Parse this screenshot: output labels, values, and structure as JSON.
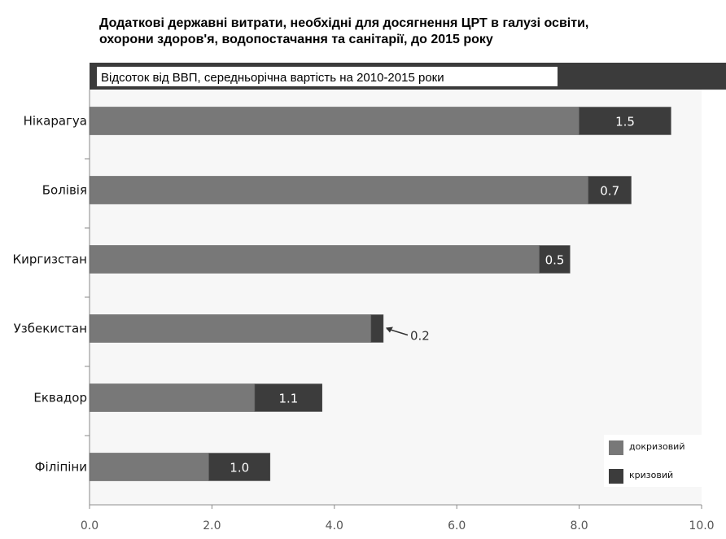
{
  "chart_data": {
    "type": "bar",
    "orientation": "horizontal",
    "stacked": true,
    "title": "Додаткові державні витрати, необхідні для досягнення ЦРТ в галузі освіти, охорони здоров'я, водопостачання та санітарії, до 2015 року",
    "title_lines": [
      "Додаткові державні витрати, необхідні для досягнення ЦРТ в галузі освіти,",
      "охорони здоров'я, водопостачання та санітарії, до 2015 року"
    ],
    "subtitle": "Відсоток від ВВП, середньорічна вартість на 2010-2015 роки",
    "categories": [
      "Нікарагуа",
      "Болівія",
      "Киргизстан",
      "Узбекистан",
      "Еквадор",
      "Філіпіни"
    ],
    "series": [
      {
        "name": "докризовий",
        "color": "#787878",
        "values": [
          8.0,
          8.15,
          7.35,
          4.6,
          2.7,
          1.95
        ]
      },
      {
        "name": "кризовий",
        "color": "#3c3c3c",
        "values": [
          1.5,
          0.7,
          0.5,
          0.2,
          1.1,
          1.0
        ]
      }
    ],
    "data_labels": [
      "1.5",
      "0.7",
      "0.5",
      "0.2",
      "1.1",
      "1.0"
    ],
    "x_ticks": [
      "0.0",
      "2.0",
      "4.0",
      "6.0",
      "8.0",
      "10.0"
    ],
    "xlim": [
      0,
      10
    ],
    "grid": false,
    "legend_position": "bottom-right"
  }
}
